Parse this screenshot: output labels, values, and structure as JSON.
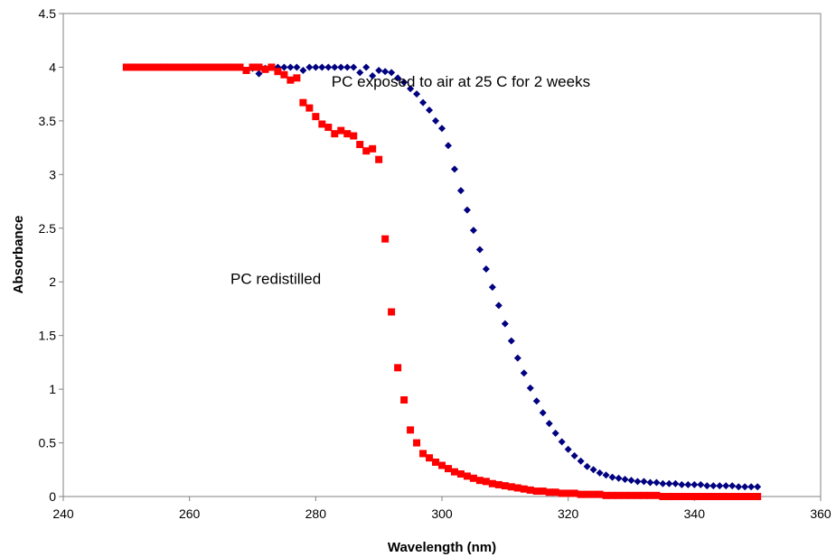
{
  "chart_data": {
    "type": "scatter",
    "title": "",
    "xlabel": "Wavelength (nm)",
    "ylabel": "Absorbance",
    "xlim": [
      240,
      360
    ],
    "ylim": [
      0,
      4.5
    ],
    "xticks": [
      240,
      260,
      280,
      300,
      320,
      340,
      360
    ],
    "yticks": [
      0,
      0.5,
      1,
      1.5,
      2,
      2.5,
      3,
      3.5,
      4,
      4.5
    ],
    "ytick_labels": [
      "0",
      "0.5",
      "1",
      "1.5",
      "2",
      "2.5",
      "3",
      "3.5",
      "4",
      "4.5"
    ],
    "grid": false,
    "legend": "none",
    "annotations": [
      {
        "text": "PC exposed to air at 25 C for 2 weeks",
        "x": 282.5,
        "y": 3.82
      },
      {
        "text": "PC redistilled",
        "x": 266.5,
        "y": 1.98
      }
    ],
    "series": [
      {
        "marker": "diamond",
        "color": "#000080",
        "x": [
          270,
          271,
          272,
          273,
          274,
          275,
          276,
          277,
          278,
          279,
          280,
          281,
          282,
          283,
          284,
          285,
          286,
          287,
          288,
          289,
          290,
          291,
          292,
          293,
          294,
          295,
          296,
          297,
          298,
          299,
          300,
          301,
          302,
          303,
          304,
          305,
          306,
          307,
          308,
          309,
          310,
          311,
          312,
          313,
          314,
          315,
          316,
          317,
          318,
          319,
          320,
          321,
          322,
          323,
          324,
          325,
          326,
          327,
          328,
          329,
          330,
          331,
          332,
          333,
          334,
          335,
          336,
          337,
          338,
          339,
          340,
          341,
          342,
          343,
          344,
          345,
          346,
          347,
          348,
          349,
          350
        ],
        "y": [
          3.99,
          3.94,
          3.99,
          4.0,
          4.0,
          4.0,
          4.0,
          4.0,
          3.97,
          4.0,
          4.0,
          4.0,
          4.0,
          4.0,
          4.0,
          4.0,
          4.0,
          3.95,
          4.0,
          3.92,
          3.97,
          3.96,
          3.95,
          3.9,
          3.86,
          3.8,
          3.75,
          3.67,
          3.6,
          3.5,
          3.43,
          3.27,
          3.05,
          2.85,
          2.67,
          2.48,
          2.3,
          2.12,
          1.95,
          1.78,
          1.61,
          1.45,
          1.29,
          1.15,
          1.01,
          0.89,
          0.78,
          0.68,
          0.59,
          0.51,
          0.44,
          0.38,
          0.33,
          0.28,
          0.25,
          0.22,
          0.2,
          0.18,
          0.17,
          0.16,
          0.15,
          0.14,
          0.14,
          0.13,
          0.13,
          0.12,
          0.12,
          0.12,
          0.11,
          0.11,
          0.11,
          0.11,
          0.1,
          0.1,
          0.1,
          0.1,
          0.1,
          0.09,
          0.09,
          0.09,
          0.09
        ]
      },
      {
        "marker": "square",
        "color": "#ff0000",
        "x": [
          250,
          251,
          252,
          253,
          254,
          255,
          256,
          257,
          258,
          259,
          260,
          261,
          262,
          263,
          264,
          265,
          266,
          267,
          268,
          269,
          270,
          271,
          272,
          273,
          274,
          275,
          276,
          277,
          278,
          279,
          280,
          281,
          282,
          283,
          284,
          285,
          286,
          287,
          288,
          289,
          290,
          291,
          292,
          293,
          294,
          295,
          296,
          297,
          298,
          299,
          300,
          301,
          302,
          303,
          304,
          305,
          306,
          307,
          308,
          309,
          310,
          311,
          312,
          313,
          314,
          315,
          316,
          317,
          318,
          319,
          320,
          321,
          322,
          323,
          324,
          325,
          326,
          327,
          328,
          329,
          330,
          331,
          332,
          333,
          334,
          335,
          336,
          337,
          338,
          339,
          340,
          341,
          342,
          343,
          344,
          345,
          346,
          347,
          348,
          349,
          350
        ],
        "y": [
          4.0,
          4.0,
          4.0,
          4.0,
          4.0,
          4.0,
          4.0,
          4.0,
          4.0,
          4.0,
          4.0,
          4.0,
          4.0,
          4.0,
          4.0,
          4.0,
          4.0,
          4.0,
          4.0,
          3.97,
          4.0,
          4.0,
          3.98,
          4.0,
          3.96,
          3.93,
          3.88,
          3.9,
          3.67,
          3.62,
          3.54,
          3.47,
          3.44,
          3.38,
          3.41,
          3.38,
          3.36,
          3.28,
          3.22,
          3.24,
          3.14,
          2.4,
          1.72,
          1.2,
          0.9,
          0.62,
          0.5,
          0.4,
          0.36,
          0.32,
          0.29,
          0.26,
          0.23,
          0.21,
          0.19,
          0.17,
          0.15,
          0.14,
          0.12,
          0.11,
          0.1,
          0.09,
          0.08,
          0.07,
          0.06,
          0.05,
          0.05,
          0.04,
          0.04,
          0.03,
          0.03,
          0.03,
          0.02,
          0.02,
          0.02,
          0.02,
          0.01,
          0.01,
          0.01,
          0.01,
          0.01,
          0.01,
          0.01,
          0.01,
          0.01,
          0.0,
          0.0,
          0.0,
          0.0,
          0.0,
          0.0,
          0.0,
          0.0,
          0.0,
          0.0,
          0.0,
          0.0,
          0.0,
          0.0,
          0.0,
          0.0
        ]
      }
    ]
  }
}
